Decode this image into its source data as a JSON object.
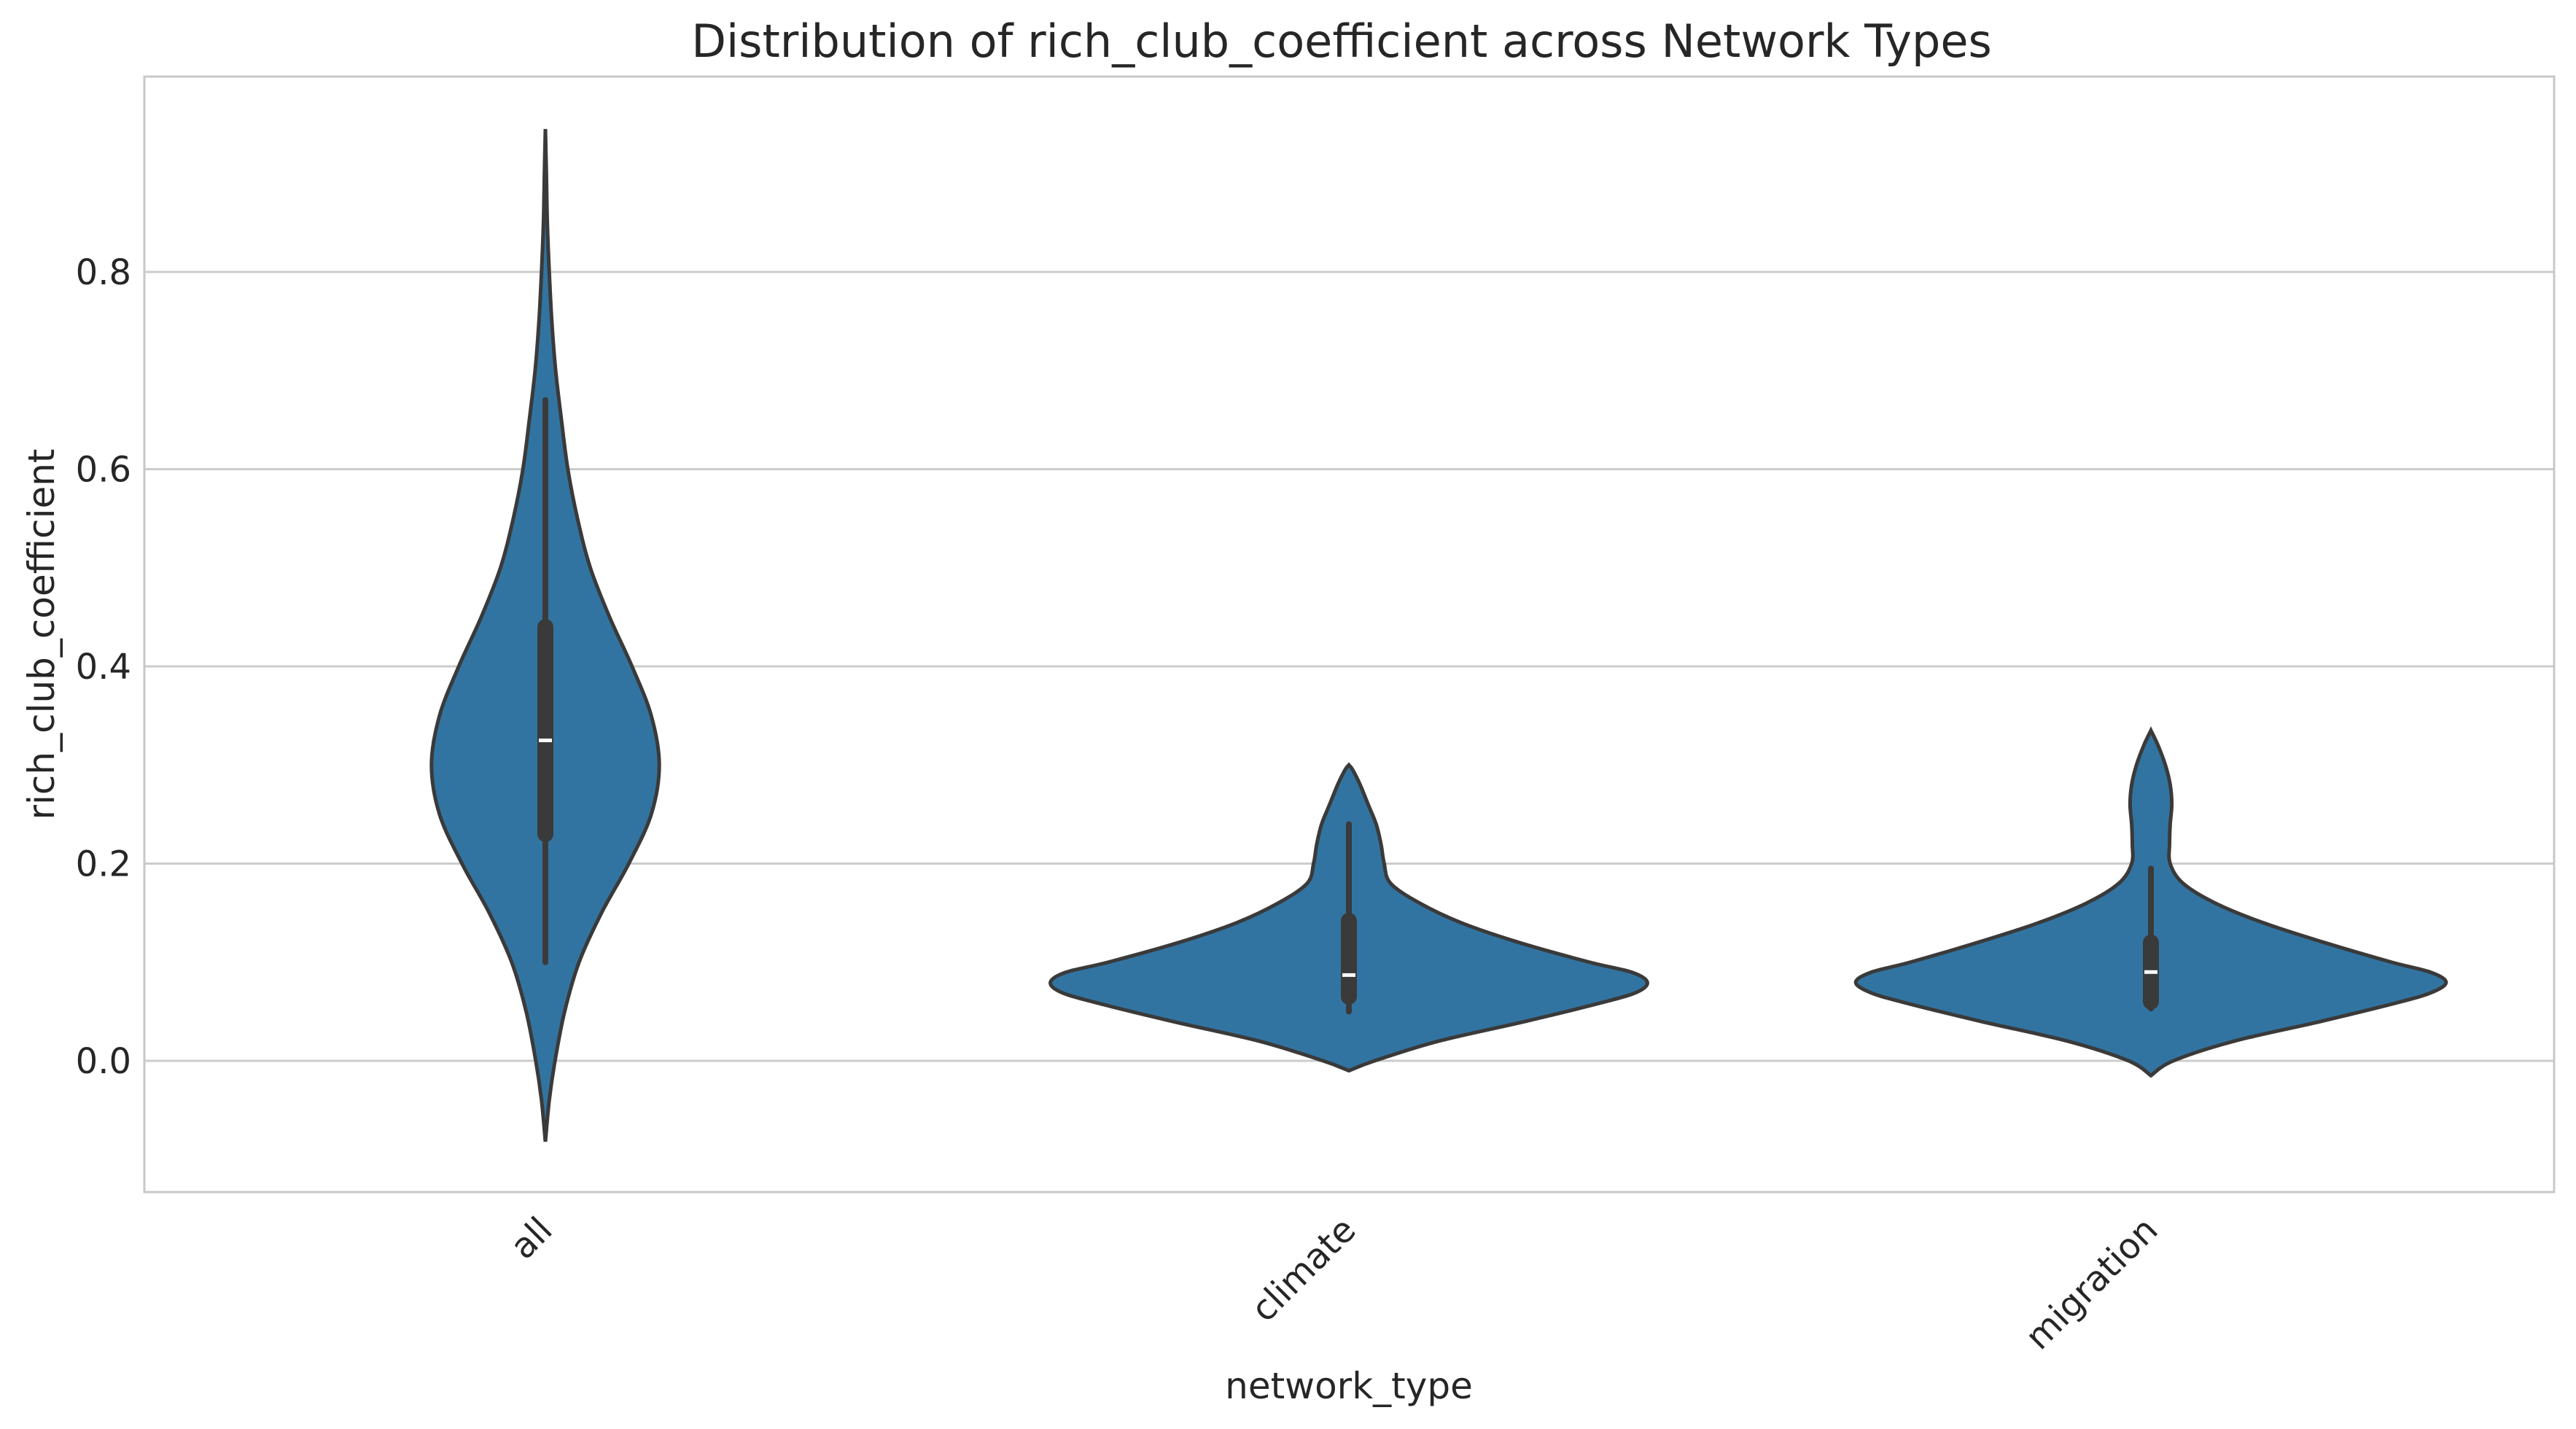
{
  "chart_data": {
    "type": "violin",
    "title": "Distribution of rich_club_coefficient across Network Types",
    "xlabel": "network_type",
    "ylabel": "rich_club_coefficient",
    "ylim": [
      -0.13,
      1.0
    ],
    "yticks": [
      "0.0",
      "0.2",
      "0.4",
      "0.6",
      "0.8"
    ],
    "ytick_values": [
      0.0,
      0.2,
      0.4,
      0.6,
      0.8
    ],
    "grid": "horizontal",
    "color": "#3274a1",
    "categories": [
      "all",
      "climate",
      "migration"
    ],
    "violins": [
      {
        "category": "all",
        "min": 0.1,
        "q1": 0.23,
        "median": 0.325,
        "q3": 0.44,
        "max": 0.67,
        "kde_range": [
          -0.082,
          0.945
        ],
        "density_profile": [
          [
            -0.082,
            0.0
          ],
          [
            -0.04,
            0.012
          ],
          [
            0.0,
            0.03
          ],
          [
            0.05,
            0.06
          ],
          [
            0.1,
            0.105
          ],
          [
            0.15,
            0.175
          ],
          [
            0.2,
            0.26
          ],
          [
            0.25,
            0.33
          ],
          [
            0.3,
            0.355
          ],
          [
            0.35,
            0.33
          ],
          [
            0.4,
            0.27
          ],
          [
            0.45,
            0.2
          ],
          [
            0.5,
            0.14
          ],
          [
            0.55,
            0.1
          ],
          [
            0.6,
            0.07
          ],
          [
            0.65,
            0.05
          ],
          [
            0.7,
            0.032
          ],
          [
            0.75,
            0.02
          ],
          [
            0.8,
            0.012
          ],
          [
            0.85,
            0.006
          ],
          [
            0.9,
            0.003
          ],
          [
            0.945,
            0.0
          ]
        ]
      },
      {
        "category": "climate",
        "min": 0.05,
        "q1": 0.065,
        "median": 0.087,
        "q3": 0.142,
        "max": 0.24,
        "kde_range": [
          -0.01,
          0.3
        ],
        "density_profile": [
          [
            -0.01,
            0.0
          ],
          [
            0.0,
            0.08
          ],
          [
            0.02,
            0.28
          ],
          [
            0.04,
            0.55
          ],
          [
            0.06,
            0.8
          ],
          [
            0.07,
            0.9
          ],
          [
            0.08,
            0.93
          ],
          [
            0.09,
            0.88
          ],
          [
            0.1,
            0.75
          ],
          [
            0.12,
            0.53
          ],
          [
            0.14,
            0.35
          ],
          [
            0.16,
            0.22
          ],
          [
            0.18,
            0.13
          ],
          [
            0.2,
            0.11
          ],
          [
            0.22,
            0.1
          ],
          [
            0.24,
            0.085
          ],
          [
            0.26,
            0.06
          ],
          [
            0.28,
            0.035
          ],
          [
            0.295,
            0.012
          ],
          [
            0.3,
            0.0
          ]
        ]
      },
      {
        "category": "migration",
        "min": 0.053,
        "q1": 0.06,
        "median": 0.09,
        "q3": 0.12,
        "max": 0.195,
        "kde_range": [
          -0.015,
          0.335
        ],
        "density_profile": [
          [
            -0.015,
            0.0
          ],
          [
            0.0,
            0.07
          ],
          [
            0.02,
            0.26
          ],
          [
            0.04,
            0.53
          ],
          [
            0.06,
            0.78
          ],
          [
            0.07,
            0.88
          ],
          [
            0.08,
            0.92
          ],
          [
            0.09,
            0.87
          ],
          [
            0.1,
            0.75
          ],
          [
            0.12,
            0.54
          ],
          [
            0.14,
            0.35
          ],
          [
            0.16,
            0.2
          ],
          [
            0.18,
            0.1
          ],
          [
            0.2,
            0.06
          ],
          [
            0.22,
            0.058
          ],
          [
            0.24,
            0.06
          ],
          [
            0.26,
            0.065
          ],
          [
            0.28,
            0.06
          ],
          [
            0.3,
            0.045
          ],
          [
            0.32,
            0.022
          ],
          [
            0.335,
            0.0
          ]
        ]
      }
    ]
  }
}
